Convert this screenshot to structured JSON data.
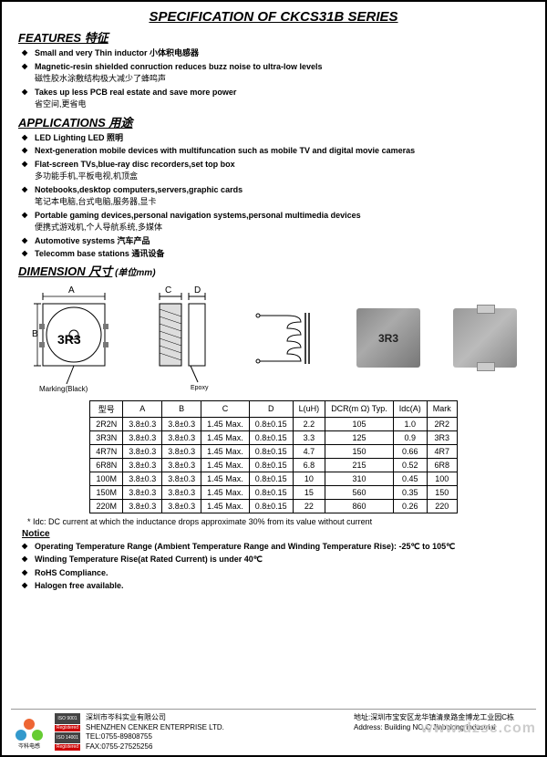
{
  "title": "SPECIFICATION OF CKCS31B SERIES",
  "sections": {
    "features": {
      "head": "FEATURES  特征",
      "items": [
        {
          "en": "Small and very Thin inductor",
          "cn": "小体积电感器"
        },
        {
          "en": "Magnetic-resin shielded conruction reduces buzz noise to ultra-low levels",
          "cn": "磁性胶水涂敷结构极大减少了蜂鸣声"
        },
        {
          "en": "Takes up less PCB real estate and save more power",
          "cn": "省空间,更省电"
        }
      ]
    },
    "applications": {
      "head": "APPLICATIONS  用途",
      "items": [
        {
          "en": "LED Lighting   LED 照明"
        },
        {
          "en": "Next-generation mobile devices with multifuncation such as mobile TV and digital movie cameras"
        },
        {
          "en": "Flat-screen TVs,blue-ray disc recorders,set top box",
          "cn": "多功能手机,平板电视,机顶盒"
        },
        {
          "en": "Notebooks,desktop computers,servers,graphic cards",
          "cn": "笔记本电脑,台式电脑,服务器,显卡"
        },
        {
          "en": "Portable gaming devices,personal navigation systems,personal multimedia devices",
          "cn": "便携式游戏机,个人导航系统,多媒体"
        },
        {
          "en": "Automotive systems  汽车产品"
        },
        {
          "en": "Telecomm base stations  通讯设备"
        }
      ]
    },
    "dimension": {
      "head": "DIMENSION  尺寸",
      "unit": "(单位mm)",
      "marking": "Marking(Black)",
      "epoxy": "Epoxy",
      "chip_label": "3R3"
    },
    "notice": {
      "head": "Notice",
      "idc_note": "* Idc: DC current at which the inductance drops approximate 30% from its value without current",
      "items": [
        "Operating Temperature Range (Ambient Temperature Range and Winding Temperature Rise): -25℃ to 105℃",
        "Winding Temperature Rise(at Rated Current) is under 40℃",
        "RoHS Compliance.",
        "Halogen free available."
      ]
    }
  },
  "table": {
    "headers": [
      "型号",
      "A",
      "B",
      "C",
      "D",
      "L(uH)",
      "DCR(m Ω) Typ.",
      "Idc(A)",
      "Mark"
    ],
    "rows": [
      [
        "2R2N",
        "3.8±0.3",
        "3.8±0.3",
        "1.45 Max.",
        "0.8±0.15",
        "2.2",
        "105",
        "1.0",
        "2R2"
      ],
      [
        "3R3N",
        "3.8±0.3",
        "3.8±0.3",
        "1.45 Max.",
        "0.8±0.15",
        "3.3",
        "125",
        "0.9",
        "3R3"
      ],
      [
        "4R7N",
        "3.8±0.3",
        "3.8±0.3",
        "1.45 Max.",
        "0.8±0.15",
        "4.7",
        "150",
        "0.66",
        "4R7"
      ],
      [
        "6R8N",
        "3.8±0.3",
        "3.8±0.3",
        "1.45 Max.",
        "0.8±0.15",
        "6.8",
        "215",
        "0.52",
        "6R8"
      ],
      [
        "100M",
        "3.8±0.3",
        "3.8±0.3",
        "1.45 Max.",
        "0.8±0.15",
        "10",
        "310",
        "0.45",
        "100"
      ],
      [
        "150M",
        "3.8±0.3",
        "3.8±0.3",
        "1.45 Max.",
        "0.8±0.15",
        "15",
        "560",
        "0.35",
        "150"
      ],
      [
        "220M",
        "3.8±0.3",
        "3.8±0.3",
        "1.45 Max.",
        "0.8±0.15",
        "22",
        "860",
        "0.26",
        "220"
      ]
    ]
  },
  "footer": {
    "company_cn": "深圳市岑科实业有限公司",
    "company_en": "SHENZHEN CENKER ENTERPRISE LTD.",
    "tel": "TEL:0755-89808755",
    "fax": "FAX:0755-27525256",
    "addr_cn": "地址:深圳市宝安区龙华镇清泉路金博龙工业园C栋",
    "addr_en": "Address:  Building NO.C Jinbolong Industrial",
    "iso1": "ISO 9001",
    "iso2": "ISO 14001",
    "reg": "Registered",
    "logo_text": "岑科电感"
  },
  "watermark": "www.dzsc.com",
  "colors": {
    "border": "#000000",
    "text": "#000000",
    "iso_bg": "#444444",
    "reg_bg": "#cc0000"
  }
}
